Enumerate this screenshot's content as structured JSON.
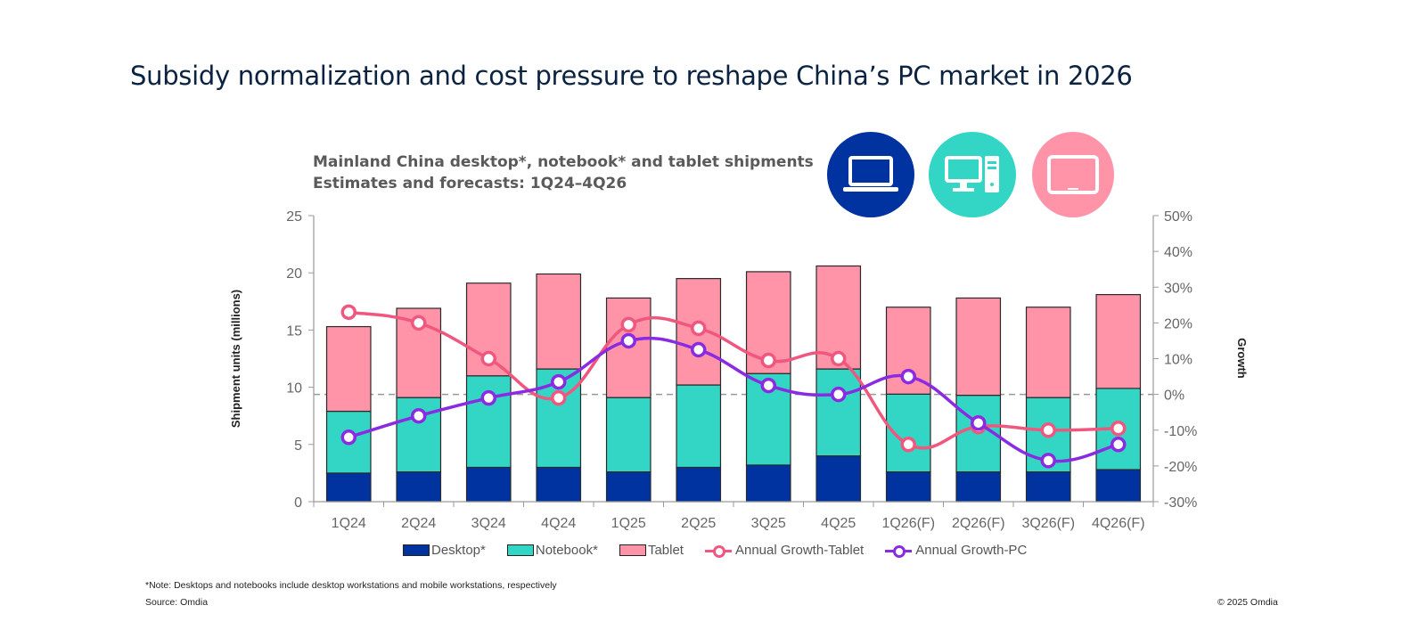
{
  "page": {
    "title": "Subsidy normalization and cost pressure to reshape China’s PC market in 2026",
    "note": "*Note: Desktops and notebooks include desktop workstations and mobile workstations, respectively",
    "source": "Source: Omdia",
    "copyright": "© 2025 Omdia",
    "icons": [
      {
        "name": "laptop-icon",
        "color": "#0033a0"
      },
      {
        "name": "desktop-computer-icon",
        "color": "#33d6c4"
      },
      {
        "name": "tablet-icon",
        "color": "#ff93a8"
      }
    ]
  },
  "chart_data": {
    "type": "bar",
    "stacked": true,
    "title": "Mainland China desktop*, notebook* and tablet shipments",
    "subtitle": "Estimates and forecasts: 1Q24–4Q26",
    "ylabel": "Shipment units (millions)",
    "y2label": "Growth",
    "ylim": [
      0,
      25
    ],
    "y2lim": [
      -30,
      50
    ],
    "yticks": [
      "0",
      "5",
      "10",
      "15",
      "20",
      "25"
    ],
    "y2ticks": [
      "-30%",
      "-20%",
      "-10%",
      "0%",
      "10%",
      "20%",
      "30%",
      "40%",
      "50%"
    ],
    "zero_growth_reference": "dashed line at 0%",
    "legend_position": "bottom",
    "categories": [
      "1Q24",
      "2Q24",
      "3Q24",
      "4Q24",
      "1Q25",
      "2Q25",
      "3Q25",
      "4Q25",
      "1Q26(F)",
      "2Q26(F)",
      "3Q26(F)",
      "4Q26(F)"
    ],
    "series": [
      {
        "name": "Desktop*",
        "type": "bar",
        "axis": "left",
        "color": "#0033a0",
        "values": [
          2.5,
          2.6,
          3.0,
          3.0,
          2.6,
          3.0,
          3.2,
          4.0,
          2.6,
          2.6,
          2.6,
          2.8
        ]
      },
      {
        "name": "Notebook*",
        "type": "bar",
        "axis": "left",
        "color": "#33d6c4",
        "values": [
          5.4,
          6.5,
          8.0,
          8.6,
          6.5,
          7.2,
          8.0,
          7.6,
          6.8,
          6.7,
          6.5,
          7.1
        ]
      },
      {
        "name": "Tablet",
        "type": "bar",
        "axis": "left",
        "color": "#ff93a8",
        "values": [
          7.4,
          7.8,
          8.1,
          8.3,
          8.7,
          9.3,
          8.9,
          9.0,
          7.6,
          8.5,
          7.9,
          8.2
        ]
      },
      {
        "name": "Annual Growth-Tablet",
        "type": "line",
        "axis": "right",
        "unit": "%",
        "color": "#f0577e",
        "values": [
          23,
          20,
          10,
          -1,
          19.5,
          18.5,
          9.5,
          10,
          -14,
          -9,
          -10,
          -9.5
        ]
      },
      {
        "name": "Annual Growth-PC",
        "type": "line",
        "axis": "right",
        "unit": "%",
        "color": "#8a2be2",
        "values": [
          -12,
          -6,
          -1,
          3.5,
          15,
          12.5,
          2.5,
          0,
          5,
          -8,
          -18.5,
          -14
        ]
      }
    ]
  }
}
